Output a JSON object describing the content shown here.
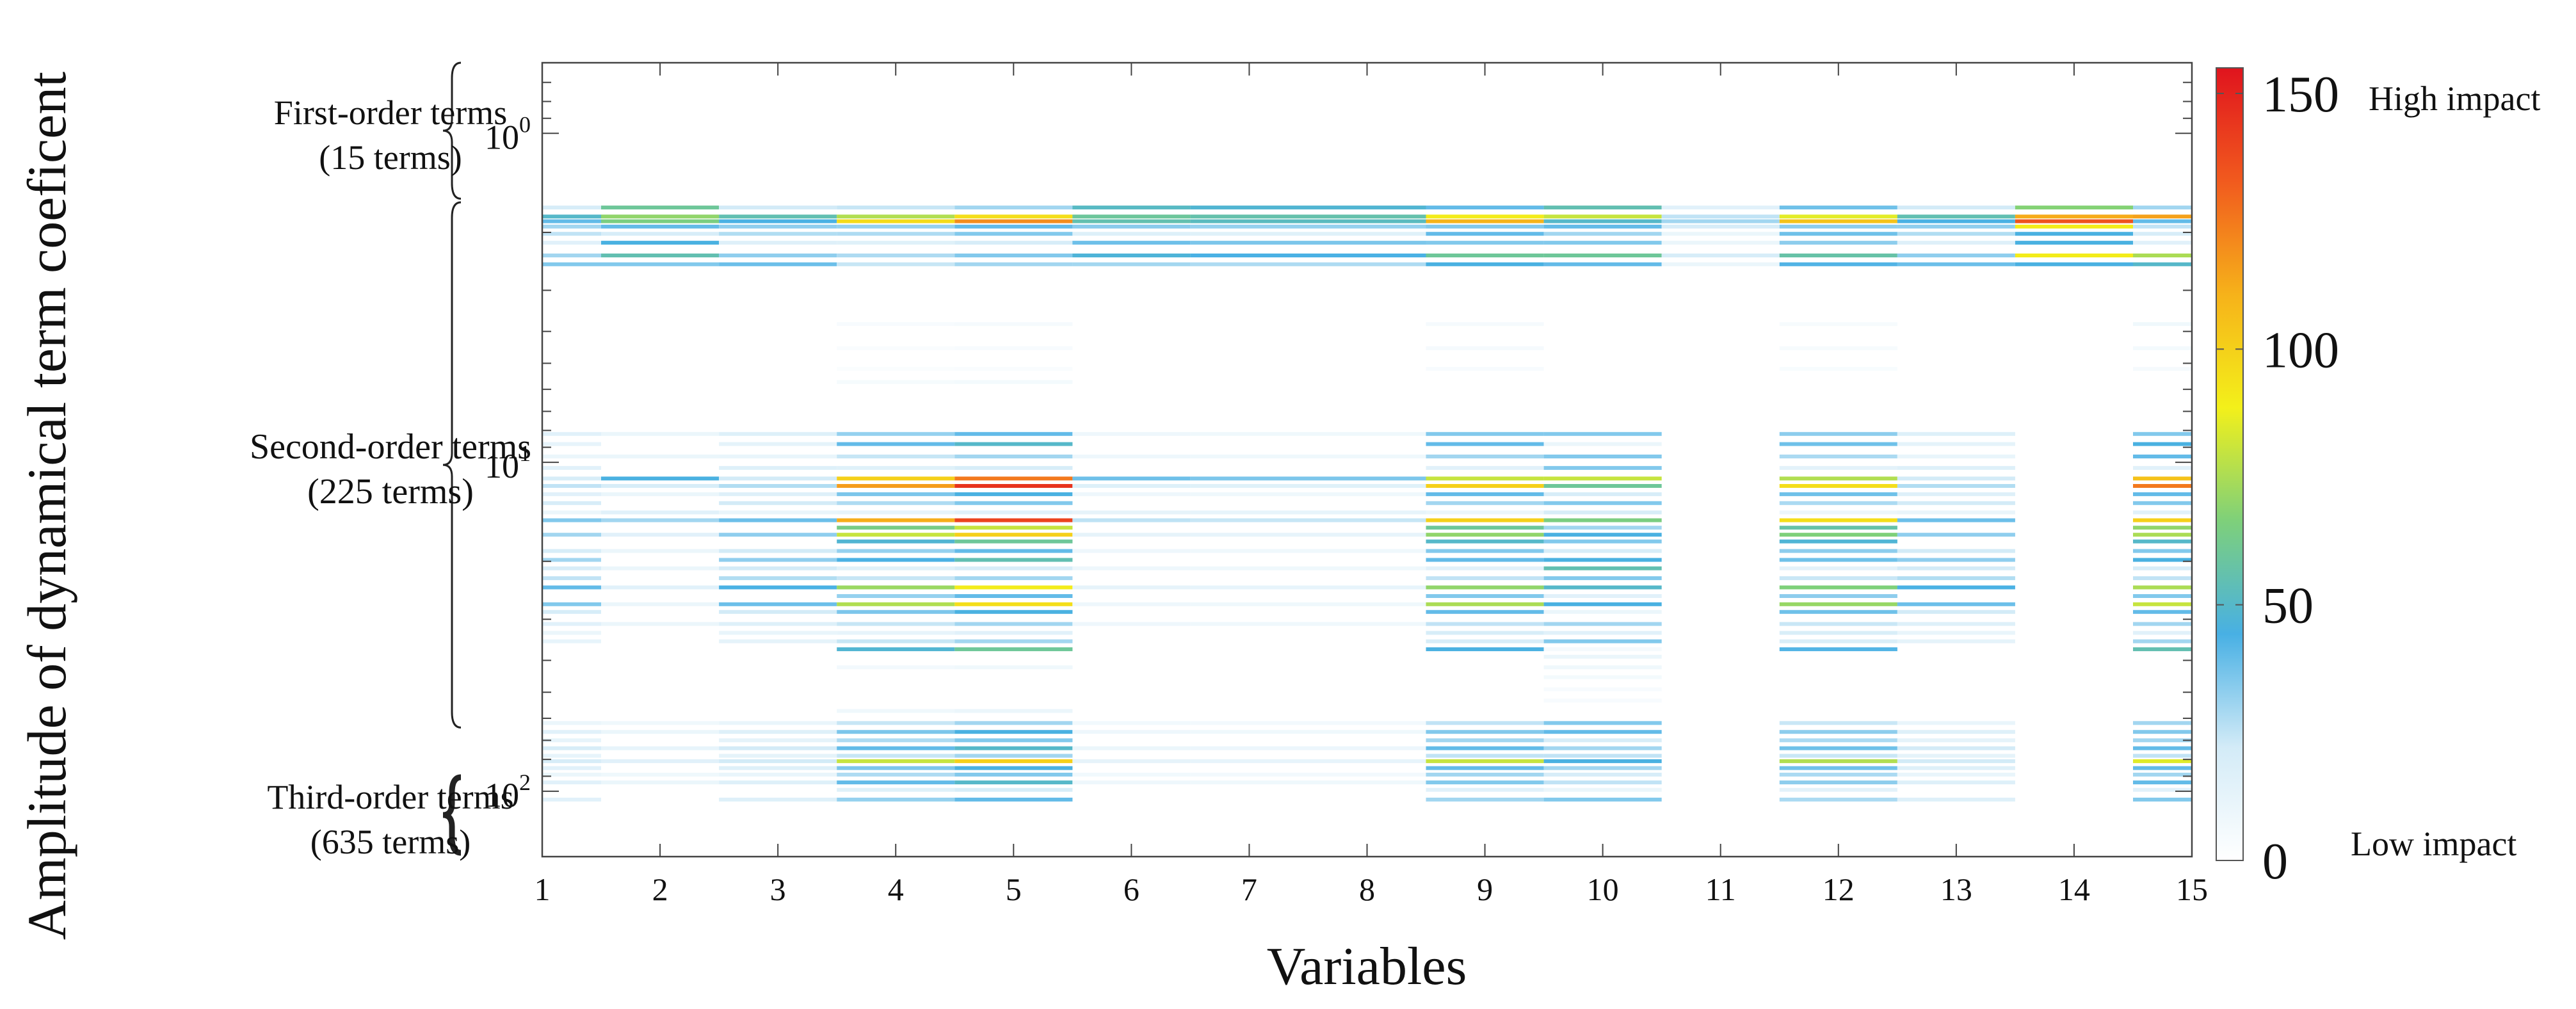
{
  "chart_data": {
    "type": "heatmap",
    "xlabel": "Variables",
    "ylabel": "Amplitude of dynamical term coeficent",
    "x_ticks": [
      "1",
      "2",
      "3",
      "4",
      "5",
      "6",
      "7",
      "8",
      "9",
      "10",
      "11",
      "12",
      "13",
      "14",
      "15"
    ],
    "x_range": [
      1,
      15
    ],
    "y_scale": "log",
    "y_direction": "reversed",
    "y_range": [
      0.61,
      158
    ],
    "y_ticks": [
      {
        "base": "10",
        "exp": "0",
        "value": 1
      },
      {
        "base": "10",
        "exp": "1",
        "value": 10
      },
      {
        "base": "10",
        "exp": "2",
        "value": 100
      }
    ],
    "colorbar": {
      "range": [
        0,
        155
      ],
      "ticks": [
        "0",
        "50",
        "100",
        "150"
      ],
      "tick_values": [
        0,
        50,
        100,
        150
      ],
      "high_label": "High impact",
      "low_label": "Low impact",
      "colormap": [
        "#ffffff",
        "#d3ebf7",
        "#48b0e4",
        "#7ed07a",
        "#f3f01a",
        "#f6b21a",
        "#f15a1e",
        "#e0141e"
      ]
    },
    "groups": [
      {
        "name": "First-order terms",
        "count": "(15 terms)",
        "y_from": 0.61,
        "y_to": 1.58
      },
      {
        "name": "Second-order terms",
        "count": "(225 terms)",
        "y_from": 1.62,
        "y_to": 64
      },
      {
        "name": "Third-order terms",
        "count": "(635 terms)",
        "y_from": 64,
        "y_to": 158
      }
    ],
    "profiles": {
      "A": [
        [
          1.68,
          30
        ],
        [
          1.79,
          95
        ],
        [
          1.85,
          120
        ],
        [
          1.92,
          40
        ],
        [
          2.02,
          35
        ],
        [
          2.15,
          20
        ],
        [
          2.35,
          35
        ],
        [
          2.5,
          30
        ],
        [
          3.8,
          5
        ],
        [
          4.5,
          4
        ],
        [
          5.2,
          3
        ],
        [
          5.7,
          6
        ],
        [
          8.2,
          40
        ],
        [
          8.8,
          50
        ],
        [
          9.6,
          30
        ],
        [
          10.4,
          20
        ],
        [
          11.2,
          125
        ],
        [
          11.8,
          145
        ],
        [
          12.5,
          45
        ],
        [
          13.3,
          35
        ],
        [
          14.2,
          15
        ],
        [
          15,
          140
        ],
        [
          15.8,
          80
        ],
        [
          16.6,
          100
        ],
        [
          17.4,
          60
        ],
        [
          18.6,
          40
        ],
        [
          19.8,
          55
        ],
        [
          21,
          20
        ],
        [
          22.5,
          30
        ],
        [
          24,
          90
        ],
        [
          25.5,
          40
        ],
        [
          27,
          95
        ],
        [
          28.5,
          45
        ],
        [
          31,
          30
        ],
        [
          33,
          15
        ],
        [
          35,
          30
        ],
        [
          37,
          60
        ],
        [
          42,
          8
        ],
        [
          57,
          10
        ],
        [
          62,
          30
        ],
        [
          66,
          45
        ],
        [
          70,
          35
        ],
        [
          74,
          50
        ],
        [
          78,
          30
        ],
        [
          81,
          100
        ],
        [
          85,
          45
        ],
        [
          89,
          35
        ],
        [
          94,
          50
        ],
        [
          99,
          20
        ],
        [
          106,
          40
        ]
      ],
      "B": [
        [
          1.68,
          20
        ],
        [
          1.79,
          50
        ],
        [
          1.85,
          40
        ],
        [
          1.92,
          30
        ],
        [
          2.02,
          25
        ],
        [
          2.15,
          15
        ],
        [
          2.35,
          30
        ],
        [
          2.5,
          35
        ],
        [
          8.2,
          15
        ],
        [
          8.8,
          12
        ],
        [
          9.6,
          10
        ],
        [
          10.4,
          15
        ],
        [
          11.2,
          20
        ],
        [
          11.8,
          25
        ],
        [
          12.5,
          15
        ],
        [
          13.3,
          20
        ],
        [
          14.2,
          10
        ],
        [
          15,
          35
        ],
        [
          16.6,
          30
        ],
        [
          18.6,
          20
        ],
        [
          19.8,
          30
        ],
        [
          21,
          20
        ],
        [
          22.5,
          25
        ],
        [
          24,
          40
        ],
        [
          27,
          35
        ],
        [
          28.5,
          20
        ],
        [
          31,
          15
        ],
        [
          33,
          10
        ],
        [
          35,
          12
        ],
        [
          62,
          10
        ],
        [
          66,
          15
        ],
        [
          70,
          12
        ],
        [
          74,
          20
        ],
        [
          78,
          12
        ],
        [
          81,
          20
        ],
        [
          85,
          15
        ],
        [
          89,
          10
        ],
        [
          94,
          15
        ],
        [
          106,
          15
        ]
      ],
      "C": [
        [
          1.68,
          60
        ],
        [
          1.79,
          70
        ],
        [
          1.85,
          65
        ],
        [
          1.92,
          40
        ],
        [
          2.02,
          20
        ],
        [
          2.15,
          45
        ],
        [
          2.35,
          55
        ],
        [
          2.5,
          35
        ],
        [
          8.2,
          10
        ],
        [
          9.6,
          10
        ],
        [
          11.2,
          45
        ],
        [
          11.8,
          20
        ],
        [
          12.5,
          10
        ],
        [
          14.2,
          15
        ],
        [
          15,
          30
        ],
        [
          16.6,
          15
        ],
        [
          18.6,
          10
        ],
        [
          21,
          10
        ],
        [
          24,
          15
        ],
        [
          27,
          10
        ],
        [
          31,
          10
        ],
        [
          62,
          8
        ],
        [
          66,
          10
        ],
        [
          74,
          12
        ],
        [
          81,
          15
        ],
        [
          89,
          8
        ],
        [
          94,
          10
        ]
      ],
      "D": [
        [
          1.68,
          55
        ],
        [
          1.79,
          80
        ],
        [
          1.85,
          50
        ],
        [
          1.92,
          40
        ],
        [
          2.02,
          30
        ],
        [
          2.15,
          35
        ],
        [
          2.35,
          60
        ],
        [
          2.5,
          40
        ],
        [
          8.2,
          35
        ],
        [
          8.8,
          10
        ],
        [
          9.6,
          35
        ],
        [
          10.4,
          35
        ],
        [
          11.2,
          80
        ],
        [
          11.8,
          60
        ],
        [
          12.5,
          20
        ],
        [
          13.3,
          35
        ],
        [
          14.2,
          20
        ],
        [
          15,
          65
        ],
        [
          15.8,
          30
        ],
        [
          16.6,
          45
        ],
        [
          17.4,
          35
        ],
        [
          18.6,
          20
        ],
        [
          19.8,
          45
        ],
        [
          21,
          55
        ],
        [
          22.5,
          35
        ],
        [
          24,
          50
        ],
        [
          25.5,
          15
        ],
        [
          27,
          45
        ],
        [
          28.5,
          10
        ],
        [
          31,
          30
        ],
        [
          33,
          15
        ],
        [
          35,
          35
        ],
        [
          37,
          5
        ],
        [
          39,
          10
        ],
        [
          42,
          8
        ],
        [
          45,
          6
        ],
        [
          49,
          4
        ],
        [
          53,
          4
        ],
        [
          62,
          35
        ],
        [
          66,
          40
        ],
        [
          70,
          20
        ],
        [
          74,
          30
        ],
        [
          78,
          25
        ],
        [
          81,
          45
        ],
        [
          85,
          30
        ],
        [
          89,
          20
        ],
        [
          94,
          25
        ],
        [
          99,
          10
        ],
        [
          106,
          35
        ]
      ],
      "E": [
        [
          1.68,
          15
        ],
        [
          1.79,
          25
        ],
        [
          1.85,
          30
        ],
        [
          1.92,
          20
        ],
        [
          2.02,
          10
        ],
        [
          2.15,
          10
        ],
        [
          2.35,
          20
        ],
        [
          2.5,
          10
        ]
      ],
      "F": [
        [
          1.68,
          40
        ],
        [
          1.79,
          90
        ],
        [
          1.85,
          110
        ],
        [
          1.92,
          35
        ],
        [
          2.02,
          40
        ],
        [
          2.15,
          35
        ],
        [
          2.35,
          60
        ],
        [
          2.5,
          45
        ],
        [
          3.8,
          5
        ],
        [
          4.5,
          5
        ],
        [
          5.2,
          4
        ],
        [
          8.2,
          35
        ],
        [
          8.8,
          40
        ],
        [
          9.6,
          30
        ],
        [
          10.4,
          15
        ],
        [
          11.2,
          80
        ],
        [
          11.8,
          100
        ],
        [
          12.5,
          40
        ],
        [
          13.3,
          30
        ],
        [
          14.2,
          10
        ],
        [
          15,
          100
        ],
        [
          15.8,
          60
        ],
        [
          16.6,
          70
        ],
        [
          17.4,
          50
        ],
        [
          18.6,
          35
        ],
        [
          19.8,
          40
        ],
        [
          21,
          15
        ],
        [
          22.5,
          25
        ],
        [
          24,
          70
        ],
        [
          25.5,
          35
        ],
        [
          27,
          75
        ],
        [
          28.5,
          40
        ],
        [
          31,
          25
        ],
        [
          33,
          20
        ],
        [
          35,
          20
        ],
        [
          37,
          45
        ],
        [
          62,
          25
        ],
        [
          66,
          35
        ],
        [
          70,
          30
        ],
        [
          74,
          40
        ],
        [
          78,
          25
        ],
        [
          81,
          80
        ],
        [
          85,
          40
        ],
        [
          89,
          30
        ],
        [
          94,
          35
        ],
        [
          99,
          15
        ],
        [
          106,
          30
        ]
      ],
      "G": [
        [
          1.68,
          30
        ],
        [
          1.79,
          115
        ],
        [
          1.85,
          40
        ],
        [
          1.92,
          25
        ],
        [
          2.02,
          20
        ],
        [
          2.15,
          15
        ],
        [
          2.35,
          75
        ],
        [
          2.5,
          50
        ],
        [
          3.8,
          8
        ],
        [
          4.5,
          6
        ],
        [
          5.2,
          5
        ],
        [
          8.2,
          35
        ],
        [
          8.8,
          45
        ],
        [
          9.6,
          40
        ],
        [
          10.4,
          15
        ],
        [
          11.2,
          105
        ],
        [
          11.8,
          125
        ],
        [
          12.5,
          40
        ],
        [
          13.3,
          35
        ],
        [
          14.2,
          15
        ],
        [
          15,
          100
        ],
        [
          15.8,
          70
        ],
        [
          16.6,
          75
        ],
        [
          17.4,
          50
        ],
        [
          18.6,
          35
        ],
        [
          19.8,
          45
        ],
        [
          21,
          20
        ],
        [
          22.5,
          25
        ],
        [
          24,
          75
        ],
        [
          25.5,
          35
        ],
        [
          27,
          80
        ],
        [
          28.5,
          40
        ],
        [
          31,
          30
        ],
        [
          33,
          15
        ],
        [
          35,
          30
        ],
        [
          37,
          55
        ],
        [
          62,
          30
        ],
        [
          66,
          35
        ],
        [
          70,
          30
        ],
        [
          74,
          40
        ],
        [
          78,
          25
        ],
        [
          81,
          85
        ],
        [
          85,
          40
        ],
        [
          89,
          30
        ],
        [
          94,
          40
        ],
        [
          99,
          15
        ],
        [
          106,
          35
        ]
      ]
    },
    "columns": [
      {
        "x": 1,
        "profile": "B",
        "scale": 1.0
      },
      {
        "x": 2,
        "profile": "C",
        "scale": 1.0
      },
      {
        "x": 3,
        "profile": "B",
        "scale": 1.1
      },
      {
        "x": 4,
        "profile": "A",
        "scale": 0.8
      },
      {
        "x": 5,
        "profile": "A",
        "scale": 1.0
      },
      {
        "x": 6,
        "profile": "C",
        "scale": 0.85
      },
      {
        "x": 7,
        "profile": "C",
        "scale": 0.8
      },
      {
        "x": 8,
        "profile": "C",
        "scale": 0.8
      },
      {
        "x": 9,
        "profile": "F",
        "scale": 1.0
      },
      {
        "x": 10,
        "profile": "D",
        "scale": 1.0
      },
      {
        "x": 11,
        "profile": "E",
        "scale": 1.0
      },
      {
        "x": 12,
        "profile": "F",
        "scale": 0.95
      },
      {
        "x": 13,
        "profile": "B",
        "scale": 1.1
      },
      {
        "x": 14,
        "profile": "E",
        "scale": 4.5
      },
      {
        "x": 15,
        "profile": "G",
        "scale": 1.0
      }
    ]
  }
}
